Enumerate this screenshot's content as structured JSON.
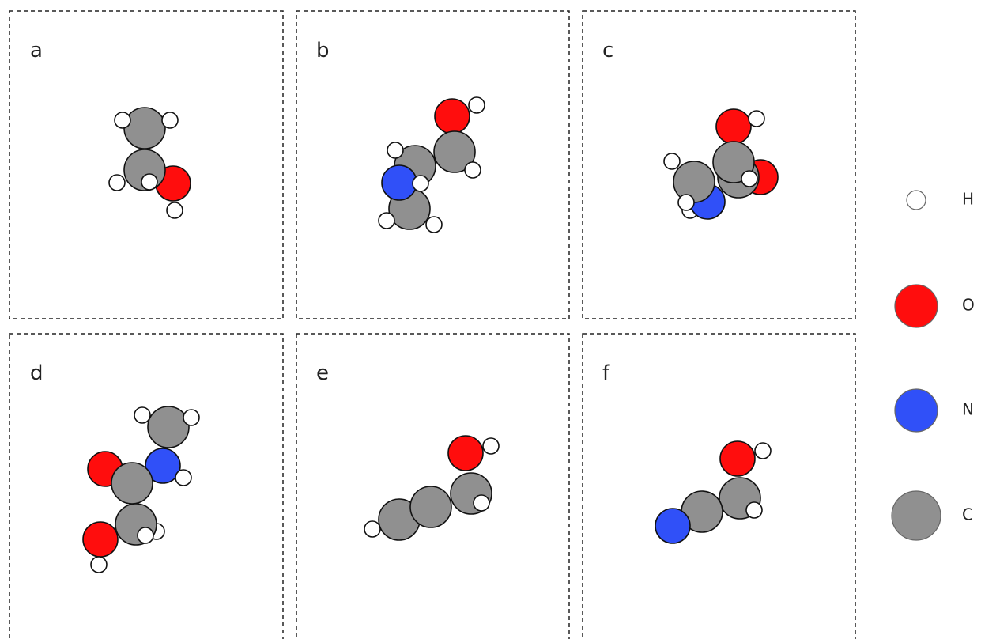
{
  "panels": [
    {
      "label": "a"
    },
    {
      "label": "b"
    },
    {
      "label": "c"
    },
    {
      "label": "d"
    },
    {
      "label": "e"
    },
    {
      "label": "f"
    }
  ],
  "legend": [
    {
      "label": "H"
    },
    {
      "label": "O"
    },
    {
      "label": "N"
    },
    {
      "label": "C"
    }
  ]
}
